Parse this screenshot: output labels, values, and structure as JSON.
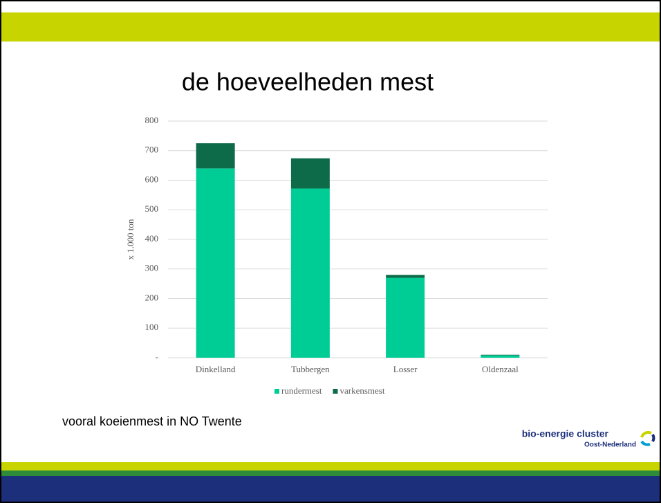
{
  "chart_data": {
    "type": "stacked_bar",
    "title": "de hoeveelheden mest",
    "y_label": "x 1.000 ton",
    "categories": [
      "Dinkelland",
      "Tubbergen",
      "Losser",
      "Oldenzaal"
    ],
    "series": [
      {
        "name": "rundermest",
        "color": "#00cc96",
        "values": [
          640,
          572,
          270,
          8
        ]
      },
      {
        "name": "varkensmest",
        "color": "#0e6b4a",
        "values": [
          85,
          102,
          10,
          2
        ]
      }
    ],
    "ylim": [
      0,
      800
    ],
    "yticks": [
      {
        "value": 0,
        "label": "-"
      },
      100,
      200,
      300,
      400,
      500,
      600,
      700,
      800
    ],
    "grid": true,
    "legend": "bottom"
  },
  "slide": {
    "caption": "vooral koeienmest in NO Twente",
    "logo": {
      "name": "bio-energie cluster",
      "region": "Oost-Nederland"
    }
  }
}
